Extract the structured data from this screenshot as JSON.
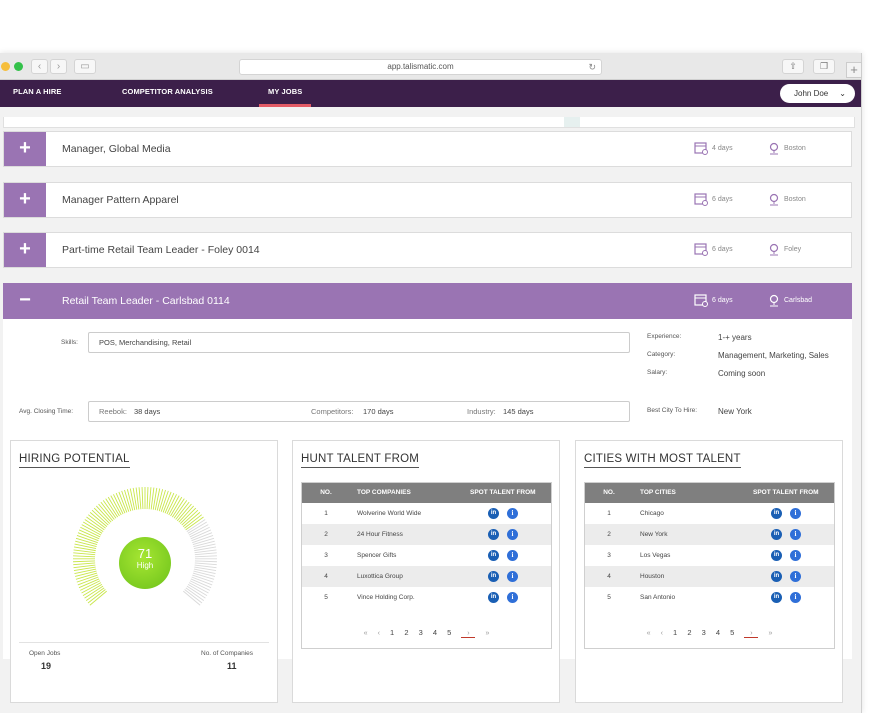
{
  "browser": {
    "url": "app.talismatic.com"
  },
  "nav": {
    "items": [
      "PLAN A HIRE",
      "COMPETITOR ANALYSIS",
      "MY JOBS"
    ],
    "active": "MY JOBS",
    "user": "John Doe"
  },
  "jobs": [
    {
      "title": "Manager, Global Media",
      "days": "4 days",
      "location": "Boston"
    },
    {
      "title": "Manager Pattern Apparel",
      "days": "6 days",
      "location": "Boston"
    },
    {
      "title": "Part-time Retail Team Leader - Foley 0014",
      "days": "6 days",
      "location": "Foley"
    },
    {
      "title": "Retail Team Leader - Carlsbad 0114",
      "days": "6 days",
      "location": "Carlsbad"
    }
  ],
  "details": {
    "skills_label": "Skills:",
    "skills_value": "POS, Merchandising, Retail",
    "experience_label": "Experience:",
    "experience_value": "1-+ years",
    "category_label": "Category:",
    "category_value": "Management, Marketing, Sales",
    "salary_label": "Salary:",
    "salary_value": "Coming soon",
    "avg_label": "Avg. Closing Time:",
    "reebok_label": "Reebok:",
    "reebok_value": "38 days",
    "competitors_label": "Competitors:",
    "competitors_value": "170 days",
    "industry_label": "Industry:",
    "industry_value": "145 days",
    "best_city_label": "Best City To Hire:",
    "best_city_value": "New York"
  },
  "hiring": {
    "title": "HIRING POTENTIAL",
    "score": "71",
    "score_label": "High",
    "score_fraction": 0.71,
    "open_jobs_label": "Open Jobs",
    "open_jobs_value": "19",
    "companies_label": "No. of Companies",
    "companies_value": "11",
    "accent": "#c9e64a"
  },
  "hunt": {
    "title": "HUNT TALENT FROM",
    "headers": [
      "NO.",
      "TOP COMPANIES",
      "SPOT TALENT FROM"
    ],
    "rows": [
      [
        "1",
        "Wolverine World Wide"
      ],
      [
        "2",
        "24 Hour Fitness"
      ],
      [
        "3",
        "Spencer Gifts"
      ],
      [
        "4",
        "Luxottica Group"
      ],
      [
        "5",
        "Vince Holding Corp."
      ]
    ]
  },
  "cities": {
    "title": "CITIES WITH MOST TALENT",
    "headers": [
      "NO.",
      "TOP CITIES",
      "SPOT TALENT FROM"
    ],
    "rows": [
      [
        "1",
        "Chicago"
      ],
      [
        "2",
        "New York"
      ],
      [
        "3",
        "Los Vegas"
      ],
      [
        "4",
        "Houston"
      ],
      [
        "5",
        "San Antonio"
      ]
    ]
  },
  "pager": {
    "first": "«",
    "prev": "‹",
    "pages": [
      "1",
      "2",
      "3",
      "4",
      "5"
    ],
    "next": "›",
    "last": "»"
  },
  "colors": {
    "purple": "#9a74b3",
    "nav": "#3c1f4a",
    "accent_red": "#e35b66"
  }
}
